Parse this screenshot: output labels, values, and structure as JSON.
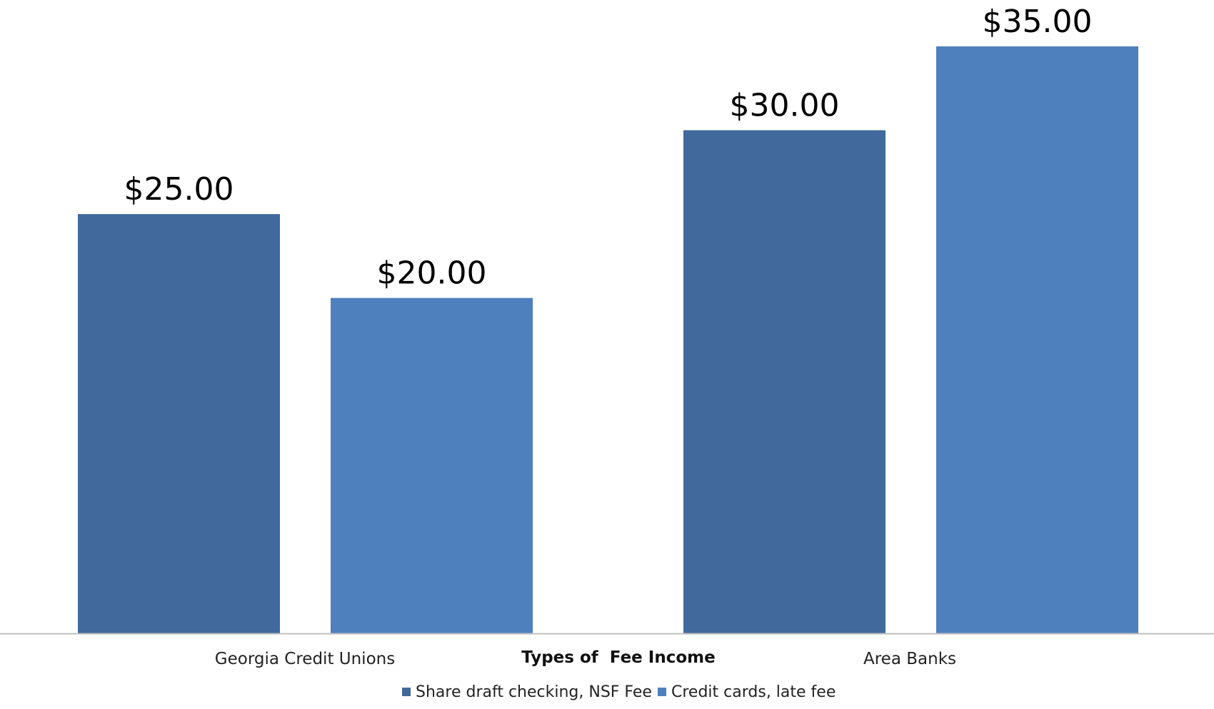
{
  "chart_data": {
    "type": "bar",
    "categories": [
      "Georgia Credit Unions",
      "Area Banks"
    ],
    "series": [
      {
        "name": "Share draft checking, NSF Fee",
        "values": [
          25,
          30
        ],
        "labels": [
          "$25.00",
          "$30.00"
        ],
        "color": "#41699c"
      },
      {
        "name": "Credit cards, late fee",
        "values": [
          20,
          35
        ],
        "labels": [
          "$20.00",
          "$35.00"
        ],
        "color": "#4e80bd"
      }
    ],
    "xlabel": "Types of  Fee Income",
    "ylabel": "",
    "ylim": [
      0,
      35
    ],
    "grid": false,
    "legend": "bottom",
    "axis_color": "#bfbfbf"
  }
}
